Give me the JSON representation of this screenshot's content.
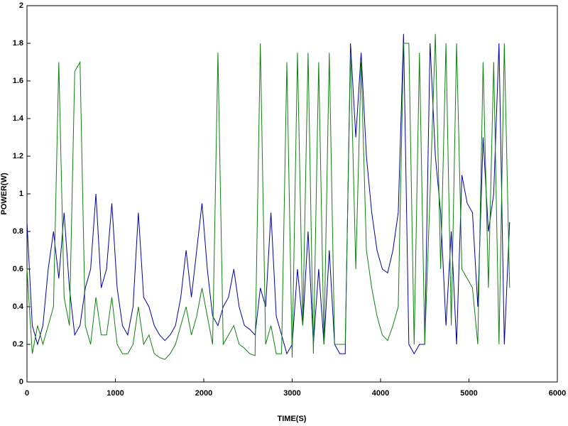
{
  "chart_data": {
    "type": "line",
    "x_label": "TIME(S)",
    "y_label": "POWER(W)",
    "x": [
      0,
      60,
      120,
      180,
      240,
      300,
      360,
      420,
      480,
      540,
      600,
      660,
      720,
      780,
      840,
      900,
      960,
      1020,
      1080,
      1140,
      1200,
      1260,
      1320,
      1380,
      1440,
      1500,
      1560,
      1620,
      1680,
      1740,
      1800,
      1860,
      1920,
      1980,
      2040,
      2100,
      2160,
      2220,
      2280,
      2340,
      2400,
      2460,
      2520,
      2580,
      2640,
      2700,
      2760,
      2820,
      2880,
      2940,
      3000,
      3060,
      3120,
      3180,
      3240,
      3300,
      3360,
      3420,
      3480,
      3540,
      3600,
      3660,
      3720,
      3780,
      3840,
      3900,
      3960,
      4020,
      4080,
      4140,
      4200,
      4260,
      4320,
      4380,
      4440,
      4500,
      4560,
      4620,
      4680,
      4740,
      4800,
      4860,
      4920,
      4980,
      5040,
      5100,
      5160,
      5220,
      5280,
      5340,
      5400,
      5460
    ],
    "series": [
      {
        "color": "#0000a0",
        "values": [
          0.85,
          0.3,
          0.2,
          0.3,
          0.6,
          0.8,
          0.55,
          0.9,
          0.5,
          0.25,
          0.3,
          0.5,
          0.6,
          1.0,
          0.5,
          0.6,
          0.95,
          0.5,
          0.3,
          0.25,
          0.4,
          0.9,
          0.45,
          0.4,
          0.3,
          0.25,
          0.22,
          0.25,
          0.3,
          0.45,
          0.7,
          0.45,
          0.7,
          0.95,
          0.6,
          0.35,
          0.3,
          0.4,
          0.45,
          0.6,
          0.4,
          0.3,
          0.28,
          0.25,
          0.5,
          0.4,
          0.9,
          0.35,
          0.25,
          0.15,
          0.2,
          0.6,
          0.3,
          0.8,
          0.2,
          0.6,
          0.2,
          0.7,
          0.2,
          0.15,
          0.15,
          1.8,
          1.3,
          1.75,
          1.2,
          0.9,
          0.7,
          0.6,
          0.58,
          0.7,
          0.9,
          1.85,
          0.2,
          0.15,
          0.2,
          0.2,
          1.8,
          1.2,
          0.9,
          0.3,
          0.8,
          0.2,
          1.1,
          0.95,
          0.9,
          0.4,
          1.3,
          0.8,
          1.0,
          1.8,
          0.2,
          0.85
        ]
      },
      {
        "color": "#108010",
        "values": [
          0.6,
          0.15,
          0.3,
          0.2,
          0.3,
          0.4,
          1.7,
          0.45,
          0.3,
          1.65,
          1.7,
          0.3,
          0.2,
          0.45,
          0.25,
          0.25,
          0.45,
          0.2,
          0.15,
          0.15,
          0.2,
          0.4,
          0.2,
          0.25,
          0.15,
          0.13,
          0.12,
          0.15,
          0.2,
          0.3,
          0.4,
          0.25,
          0.35,
          0.5,
          0.35,
          0.2,
          1.75,
          0.2,
          0.25,
          0.3,
          0.2,
          0.18,
          0.15,
          0.14,
          1.8,
          0.2,
          0.3,
          0.15,
          0.15,
          1.7,
          0.13,
          1.75,
          0.3,
          1.75,
          0.15,
          1.7,
          0.2,
          1.75,
          0.2,
          0.2,
          0.2,
          1.75,
          0.6,
          1.7,
          0.7,
          0.5,
          0.35,
          0.25,
          0.22,
          0.3,
          0.4,
          1.8,
          1.8,
          0.2,
          1.75,
          0.2,
          1.0,
          1.85,
          0.6,
          1.8,
          0.3,
          1.8,
          0.6,
          0.55,
          0.5,
          0.2,
          1.7,
          0.5,
          1.7,
          0.2,
          1.8,
          0.5
        ]
      }
    ],
    "xlim": [
      0,
      6000
    ],
    "xticks": [
      0,
      1000,
      2000,
      3000,
      4000,
      5000,
      6000
    ],
    "ylim": [
      0,
      2
    ],
    "yticks": [
      0,
      0.2,
      0.4,
      0.6,
      0.8,
      1,
      1.2,
      1.4,
      1.6,
      1.8,
      2
    ],
    "grid": false
  }
}
